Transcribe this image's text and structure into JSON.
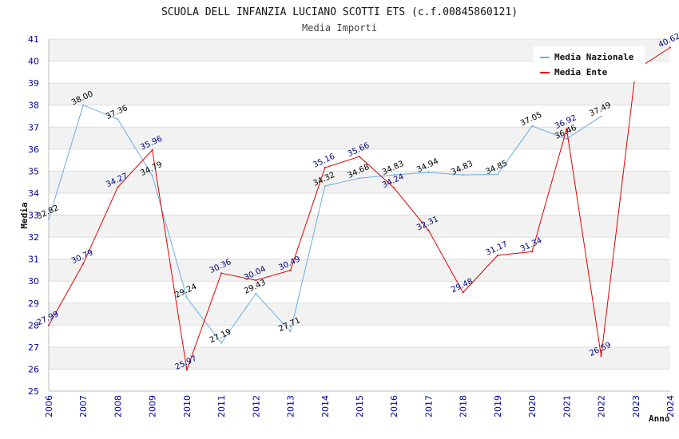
{
  "chart_data": {
    "type": "line",
    "title": "SCUOLA DELL INFANZIA LUCIANO SCOTTI ETS (c.f.00845860121)",
    "subtitle": "Media Importi",
    "xlabel": "Anno",
    "ylabel": "Media",
    "ylim": [
      25,
      41
    ],
    "yticks": [
      25,
      26,
      27,
      28,
      29,
      30,
      31,
      32,
      33,
      34,
      35,
      36,
      37,
      38,
      39,
      40,
      41
    ],
    "x": [
      2006,
      2007,
      2008,
      2009,
      2010,
      2011,
      2012,
      2013,
      2014,
      2015,
      2016,
      2017,
      2018,
      2019,
      2020,
      2021,
      2022,
      2023,
      2024
    ],
    "grid": true,
    "legend_position": "top-right",
    "series": [
      {
        "name": "Media Nazionale",
        "color": "#6aaee8",
        "label_color": "#000000",
        "values": [
          32.82,
          38.0,
          37.36,
          34.79,
          29.24,
          27.19,
          29.43,
          27.71,
          34.32,
          34.68,
          34.83,
          34.94,
          34.83,
          34.85,
          37.05,
          36.46,
          37.49,
          null,
          null
        ],
        "labels": [
          "32.82",
          "38.00",
          "37.36",
          "34.79",
          "29.24",
          "27.19",
          "29.43",
          "27.71",
          "34.32",
          "34.68",
          "34.83",
          "34.94",
          "34.83",
          "34.85",
          "37.05",
          "36.46",
          "37.49",
          "",
          ""
        ]
      },
      {
        "name": "Media Ente",
        "color": "#e00000",
        "label_color": "#000080",
        "values": [
          27.99,
          30.79,
          34.27,
          35.96,
          25.97,
          30.36,
          30.04,
          30.49,
          35.16,
          35.66,
          34.24,
          32.31,
          29.48,
          31.17,
          31.34,
          36.92,
          26.59,
          39.6,
          40.62
        ],
        "labels": [
          "27.99",
          "30.79",
          "34.27",
          "35.96",
          "25.97",
          "30.36",
          "30.04",
          "30.49",
          "35.16",
          "35.66",
          "34.24",
          "32.31",
          "29.48",
          "31.17",
          "31.34",
          "36.92",
          "26.59",
          "",
          "40.62"
        ]
      }
    ]
  }
}
